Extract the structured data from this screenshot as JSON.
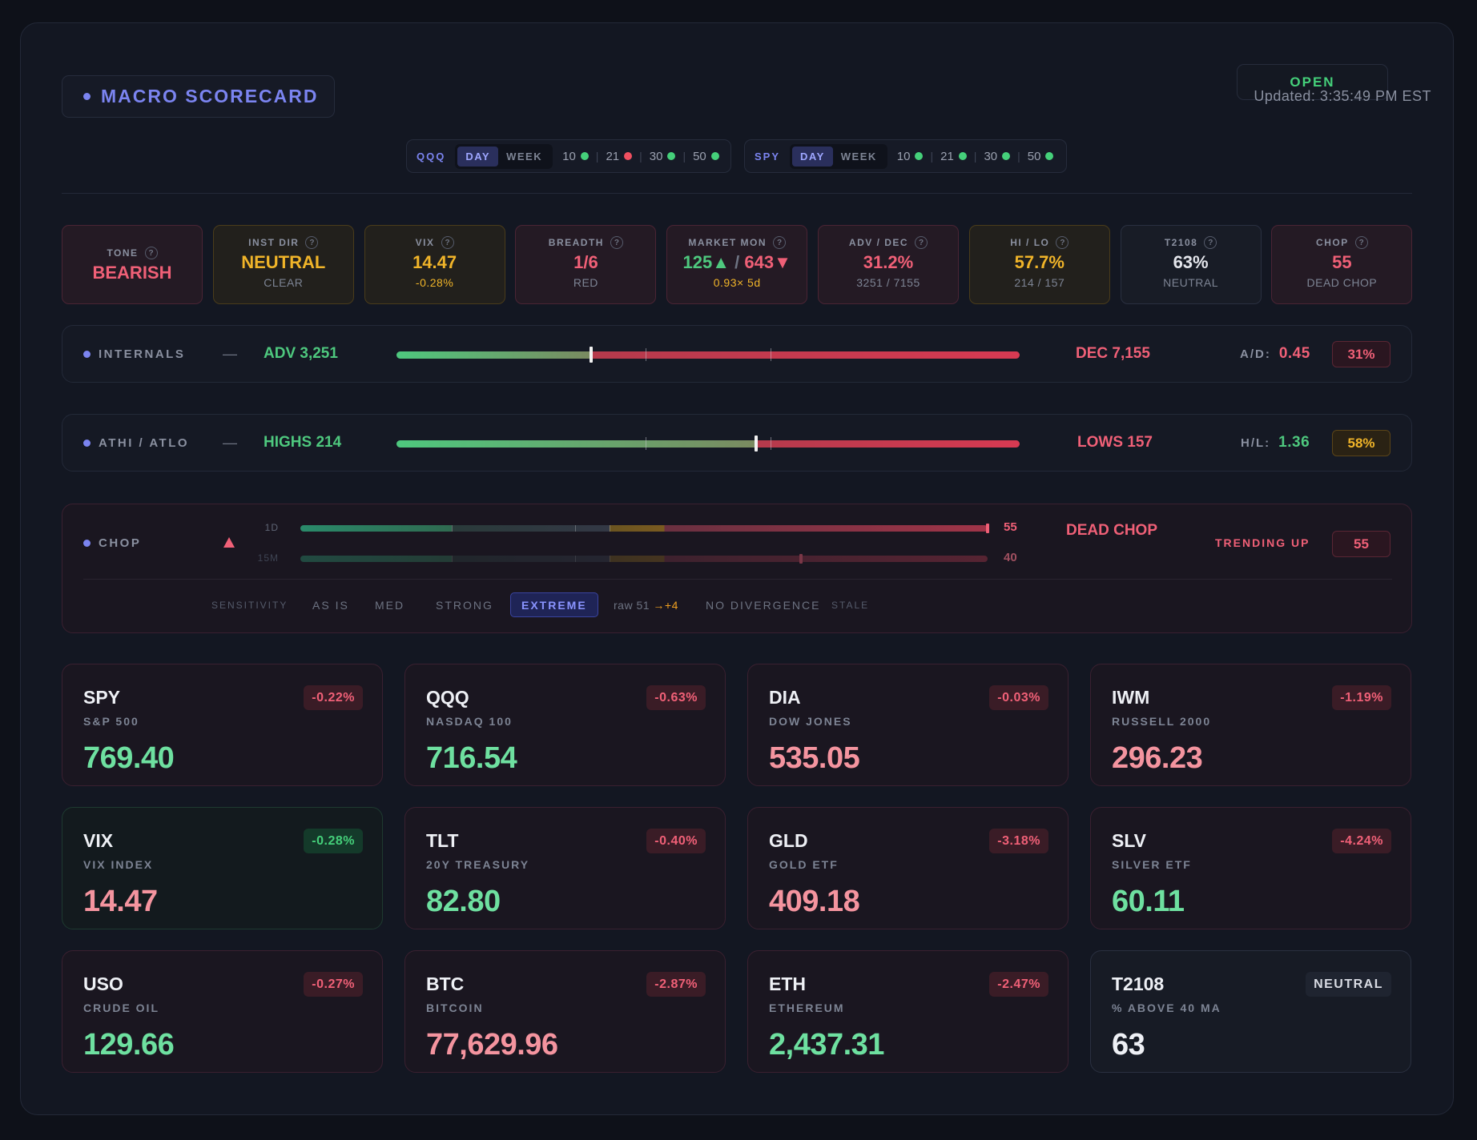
{
  "header": {
    "title": "MACRO SCORECARD",
    "status": "OPEN",
    "updated": "Updated: 3:35:49 PM EST"
  },
  "timeframes": [
    {
      "symbol": "QQQ",
      "modes": [
        "DAY",
        "WEEK"
      ],
      "active": "DAY",
      "mas": [
        {
          "label": "10",
          "status": "green"
        },
        {
          "label": "21",
          "status": "red"
        },
        {
          "label": "30",
          "status": "green"
        },
        {
          "label": "50",
          "status": "green"
        }
      ]
    },
    {
      "symbol": "SPY",
      "modes": [
        "DAY",
        "WEEK"
      ],
      "active": "DAY",
      "mas": [
        {
          "label": "10",
          "status": "green"
        },
        {
          "label": "21",
          "status": "green"
        },
        {
          "label": "30",
          "status": "green"
        },
        {
          "label": "50",
          "status": "green"
        }
      ]
    }
  ],
  "stats": [
    {
      "label": "TONE",
      "value": "BEARISH",
      "sub": "",
      "tone": "red"
    },
    {
      "label": "INST DIR",
      "value": "NEUTRAL",
      "sub": "CLEAR",
      "tone": "yellow"
    },
    {
      "label": "VIX",
      "value": "14.47",
      "sub": "-0.28%",
      "tone": "yellow"
    },
    {
      "label": "BREADTH",
      "value": "1/6",
      "sub": "RED",
      "tone": "red"
    },
    {
      "label": "MARKET MON",
      "value_up": "125▲",
      "value_sep": " / ",
      "value_down": "643▼",
      "sub": "0.93× 5d",
      "tone": "red"
    },
    {
      "label": "ADV / DEC",
      "value": "31.2%",
      "sub": "3251 / 7155",
      "tone": "red"
    },
    {
      "label": "HI / LO",
      "value": "57.7%",
      "sub": "214 / 157",
      "tone": "yellow"
    },
    {
      "label": "T2108",
      "value": "63%",
      "sub": "NEUTRAL",
      "tone": "neutral"
    },
    {
      "label": "CHOP",
      "value": "55",
      "sub": "DEAD CHOP",
      "tone": "red"
    }
  ],
  "internals": {
    "label": "INTERNALS",
    "dash": "—",
    "left": "ADV 3,251",
    "right": "DEC 7,155",
    "ratio_label": "A/D:",
    "ratio": "0.45",
    "pct": "31%",
    "adv_fraction": 0.312
  },
  "athi": {
    "label": "ATHI / ATLO",
    "dash": "—",
    "left": "HIGHS 214",
    "right": "LOWS 157",
    "ratio_label": "H/L:",
    "ratio": "1.36",
    "pct": "58%",
    "high_fraction": 0.577
  },
  "chop": {
    "label": "CHOP",
    "icon": "triangle-up-icon",
    "tracks": [
      {
        "label": "1D",
        "value": "55",
        "level": 55
      },
      {
        "label": "15M",
        "value": "40",
        "level": 40
      }
    ],
    "state": "DEAD CHOP",
    "trend": "TRENDING UP",
    "score": "55",
    "sensitivity_label": "SENSITIVITY",
    "sensitivity_options": [
      "AS IS",
      "MED",
      "STRONG",
      "EXTREME"
    ],
    "sensitivity_active": "EXTREME",
    "raw": "raw 51",
    "adj": "→+4",
    "divergence": "NO DIVERGENCE",
    "stale": "STALE"
  },
  "tickers": [
    {
      "symbol": "SPY",
      "name": "S&P 500",
      "price": "769.40",
      "change": "-0.22%",
      "price_color": "green",
      "change_color": "red"
    },
    {
      "symbol": "QQQ",
      "name": "NASDAQ 100",
      "price": "716.54",
      "change": "-0.63%",
      "price_color": "green",
      "change_color": "red"
    },
    {
      "symbol": "DIA",
      "name": "DOW JONES",
      "price": "535.05",
      "change": "-0.03%",
      "price_color": "red",
      "change_color": "red"
    },
    {
      "symbol": "IWM",
      "name": "RUSSELL 2000",
      "price": "296.23",
      "change": "-1.19%",
      "price_color": "red",
      "change_color": "red"
    },
    {
      "symbol": "VIX",
      "name": "VIX INDEX",
      "price": "14.47",
      "change": "-0.28%",
      "price_color": "red",
      "change_color": "green"
    },
    {
      "symbol": "TLT",
      "name": "20Y TREASURY",
      "price": "82.80",
      "change": "-0.40%",
      "price_color": "green",
      "change_color": "red"
    },
    {
      "symbol": "GLD",
      "name": "GOLD ETF",
      "price": "409.18",
      "change": "-3.18%",
      "price_color": "red",
      "change_color": "red"
    },
    {
      "symbol": "SLV",
      "name": "SILVER ETF",
      "price": "60.11",
      "change": "-4.24%",
      "price_color": "green",
      "change_color": "red"
    },
    {
      "symbol": "USO",
      "name": "CRUDE OIL",
      "price": "129.66",
      "change": "-0.27%",
      "price_color": "green",
      "change_color": "red"
    },
    {
      "symbol": "BTC",
      "name": "BITCOIN",
      "price": "77,629.96",
      "change": "-2.87%",
      "price_color": "red",
      "change_color": "red"
    },
    {
      "symbol": "ETH",
      "name": "ETHEREUM",
      "price": "2,437.31",
      "change": "-2.47%",
      "price_color": "green",
      "change_color": "red"
    },
    {
      "symbol": "T2108",
      "name": "% ABOVE 40 MA",
      "price": "63",
      "change": "NEUTRAL",
      "price_color": "white",
      "change_color": "neutral"
    }
  ],
  "colors": {
    "accent": "#7b84f0",
    "green": "#4ec87e",
    "red": "#f06077",
    "yellow": "#f0b429",
    "price_green": "#6ee0a0",
    "price_red": "#f4949f"
  }
}
